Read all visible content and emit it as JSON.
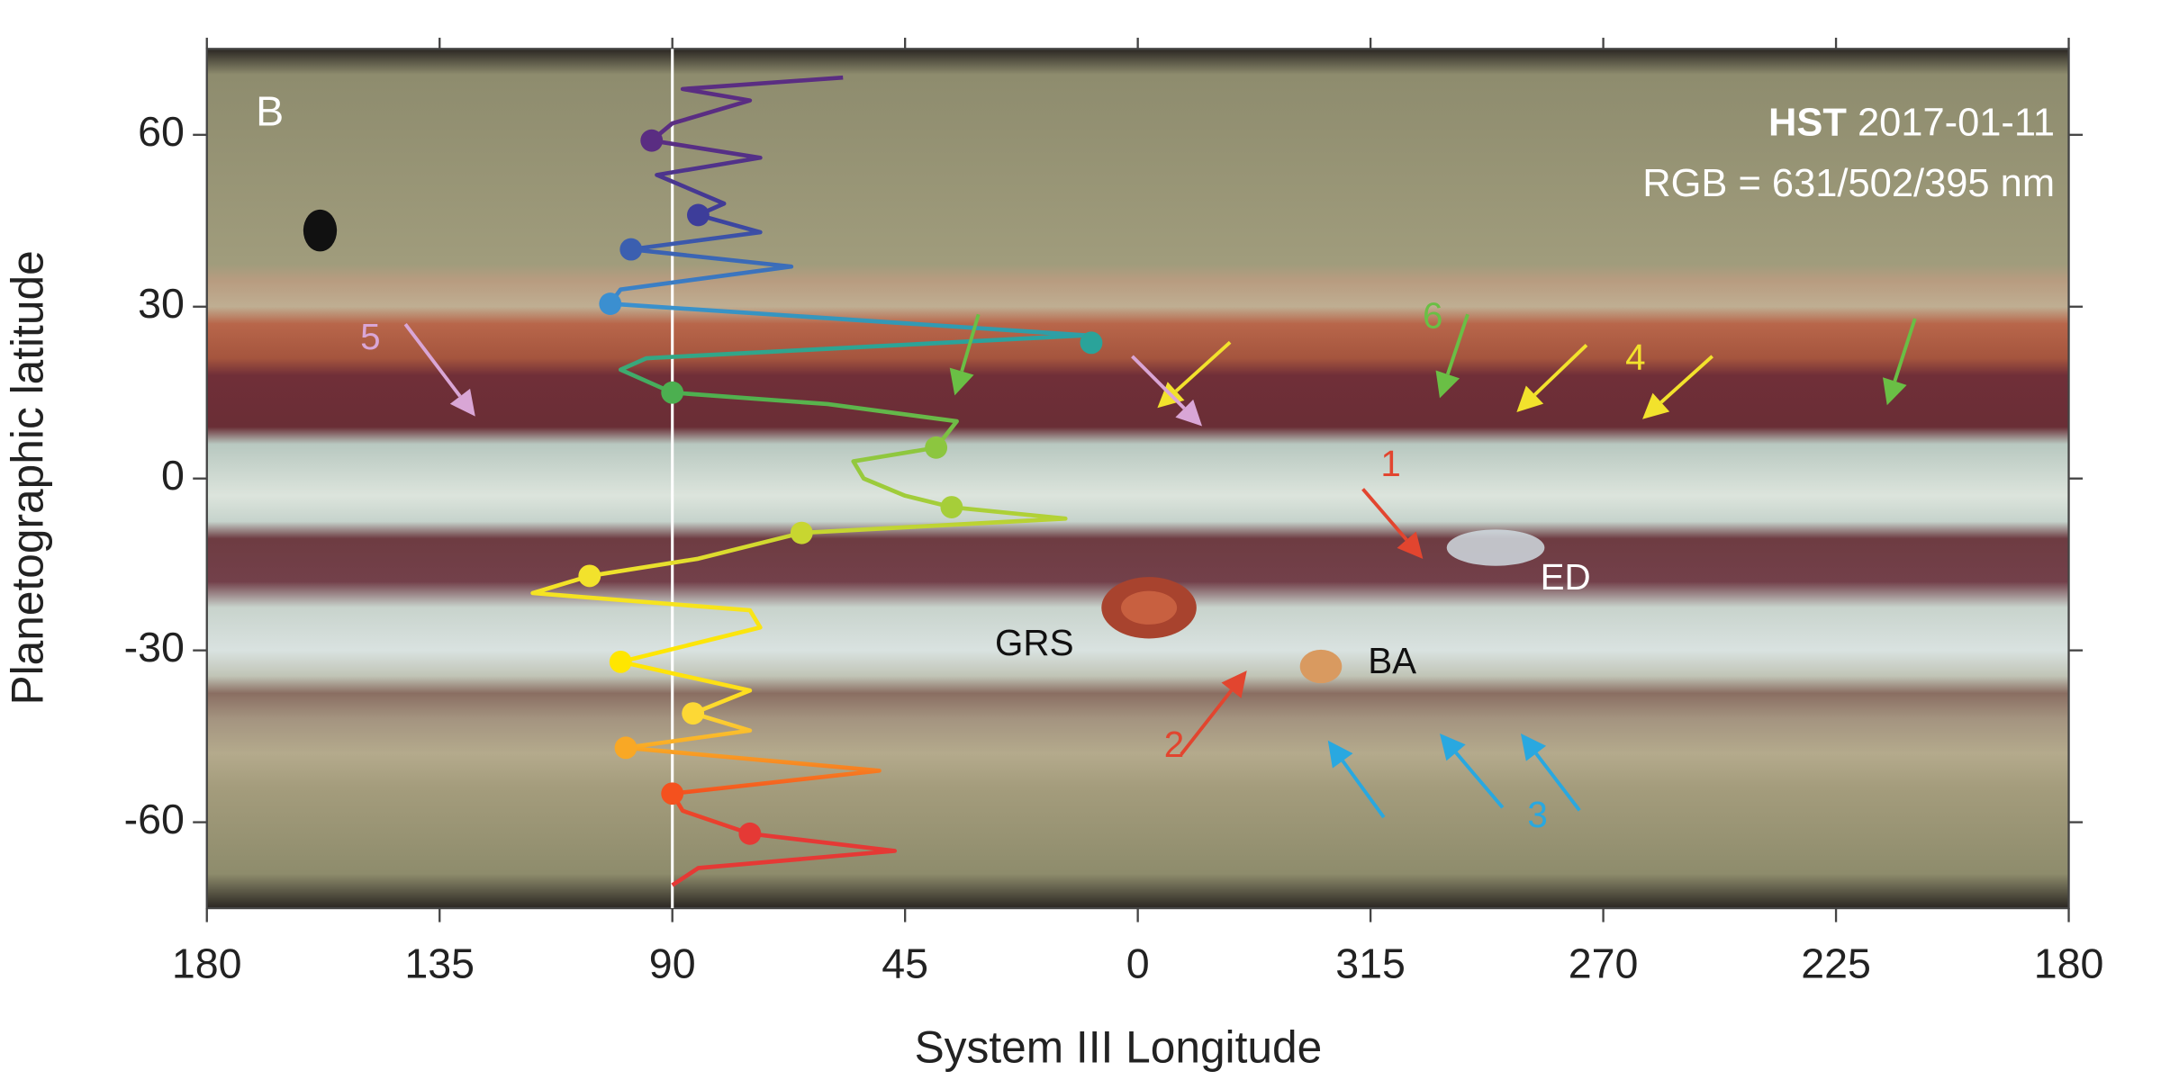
{
  "chart_data": {
    "type": "line",
    "panel_label": "B",
    "hst_label": "HST",
    "date": "2017-01-11",
    "rgb": "RGB = 631/502/395 nm",
    "xlabel": "System III Longitude",
    "ylabel": "Planetographic latitude",
    "xlim": [
      180,
      -180
    ],
    "ylim": [
      -75,
      75
    ],
    "xticks": [
      180,
      135,
      90,
      45,
      0,
      {
        "value": -45,
        "label": "315"
      },
      {
        "value": -90,
        "label": "270"
      },
      {
        "value": -135,
        "label": "225"
      },
      {
        "value": -180,
        "label": "180"
      }
    ],
    "yticks": [
      60,
      30,
      0,
      -30,
      -60
    ],
    "vline": 90,
    "profile": {
      "x": [
        57,
        88,
        75,
        90,
        94,
        73,
        93,
        80,
        85,
        73,
        98,
        67,
        100,
        102,
        10,
        95,
        100,
        90,
        60,
        35,
        39,
        55,
        53,
        45,
        36,
        14,
        65,
        85,
        106,
        117,
        75,
        73,
        100,
        75,
        86,
        75,
        99,
        50,
        90,
        88,
        75,
        47,
        85,
        90
      ],
      "values": [
        70,
        68,
        66,
        62,
        59,
        56,
        53,
        48,
        46,
        43,
        40,
        37,
        33,
        30.5,
        25,
        21,
        19,
        15,
        13,
        10,
        5.4,
        3,
        0,
        -3,
        -5,
        -7,
        -9.5,
        -14,
        -17,
        -20,
        -23,
        -26,
        -32,
        -37,
        -41,
        -44,
        -47,
        -51,
        -55,
        -58,
        -62,
        -65,
        -68,
        -71
      ]
    },
    "markers": {
      "x": [
        94,
        85,
        98,
        102,
        9,
        90,
        39,
        36,
        65,
        106,
        100,
        86,
        99,
        90,
        75
      ],
      "values": [
        59,
        46,
        40,
        30.5,
        23.7,
        15,
        5.4,
        -5,
        -9.5,
        -17,
        -32,
        -41,
        -47,
        -55,
        -62
      ],
      "colors": [
        "#5a2d82",
        "#3d3d9a",
        "#3b5fb0",
        "#3b8fd0",
        "#2aa39a",
        "#4caf50",
        "#8cc63f",
        "#a6ce39",
        "#c8d630",
        "#f2e22c",
        "#ffe600",
        "#fdd835",
        "#f9a825",
        "#f4511e",
        "#e53935"
      ]
    },
    "annotations": [
      {
        "text": "5",
        "color": "#d9a6d6"
      },
      {
        "text": "6",
        "color": "#6abf45"
      },
      {
        "text": "4",
        "color": "#f2e22c"
      },
      {
        "text": "1",
        "color": "#e2452f"
      },
      {
        "text": "2",
        "color": "#e2452f"
      },
      {
        "text": "3",
        "color": "#29a8e0"
      },
      {
        "text": "GRS",
        "color": "#111111"
      },
      {
        "text": "BA",
        "color": "#111111"
      },
      {
        "text": "ED",
        "color": "#ffffff"
      }
    ]
  }
}
